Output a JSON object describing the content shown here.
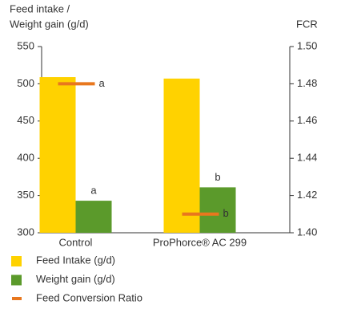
{
  "chart_data": {
    "type": "bar",
    "y_label_lines": [
      "Feed intake /",
      "Weight gain (g/d)"
    ],
    "y2_label": "FCR",
    "categories": [
      "Control",
      "ProPhorce® AC 299"
    ],
    "series": [
      {
        "name": "Feed Intake (g/d)",
        "color": "#ffd200",
        "values": [
          509,
          507
        ]
      },
      {
        "name": "Weight gain (g/d)",
        "color": "#5b9a2b",
        "values": [
          343,
          361
        ],
        "letters": [
          "a",
          "b"
        ]
      },
      {
        "name": "Feed Conversion Ratio",
        "color": "#e8771e",
        "axis": "y2",
        "type": "dash",
        "values": [
          1.48,
          1.41
        ],
        "letters": [
          "a",
          "b"
        ]
      }
    ],
    "ylim": [
      300,
      550
    ],
    "yticks": [
      300,
      350,
      400,
      450,
      500,
      550
    ],
    "y2lim": [
      1.4,
      1.5
    ],
    "y2ticks": [
      {
        "value": 1.4,
        "label": "1.40"
      },
      {
        "value": 1.42,
        "label": "1.42"
      },
      {
        "value": 1.44,
        "label": "1.44"
      },
      {
        "value": 1.46,
        "label": "1.46"
      },
      {
        "value": 1.48,
        "label": "1.48"
      },
      {
        "value": 1.5,
        "label": "1.50"
      }
    ],
    "grid": false
  }
}
